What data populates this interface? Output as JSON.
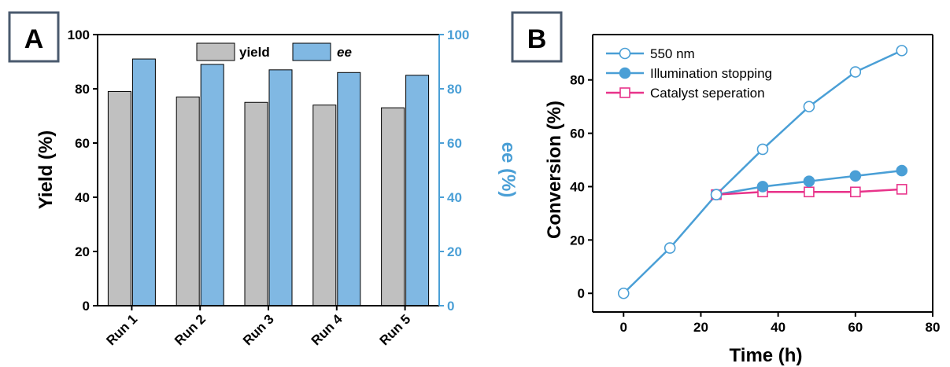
{
  "chart_data": [
    {
      "panel_label": "A",
      "type": "bar",
      "categories": [
        "Run 1",
        "Run 2",
        "Run 3",
        "Run 4",
        "Run 5"
      ],
      "series": [
        {
          "name": "yield",
          "axis": "left",
          "color": "#c0c0c0",
          "values": [
            79,
            77,
            75,
            74,
            73
          ]
        },
        {
          "name": "ee",
          "axis": "right",
          "color": "#80b8e3",
          "values": [
            91,
            89,
            87,
            86,
            85
          ]
        }
      ],
      "ylabel": "Yield (%)",
      "ylabel_right": "ee (%)",
      "ylim": [
        0,
        100
      ],
      "yticks": [
        0,
        20,
        40,
        60,
        80,
        100
      ],
      "right_axis_color": "#4a9fd6",
      "legend": "top-center",
      "grid": false
    },
    {
      "panel_label": "B",
      "type": "line",
      "xlabel": "Time (h)",
      "ylabel": "Conversion (%)",
      "xlim": [
        -8,
        80
      ],
      "ylim": [
        -7,
        97
      ],
      "xticks": [
        0,
        20,
        40,
        60,
        80
      ],
      "yticks": [
        0,
        20,
        40,
        60,
        80
      ],
      "legend": "top-left",
      "grid": false,
      "series": [
        {
          "name": "550 nm",
          "color": "#4a9fd6",
          "marker": "open-circle",
          "x": [
            0,
            12,
            24,
            36,
            48,
            60,
            72
          ],
          "y": [
            0,
            17,
            37,
            54,
            70,
            83,
            91
          ]
        },
        {
          "name": "Illumination stopping",
          "color": "#4a9fd6",
          "marker": "filled-circle",
          "x": [
            24,
            36,
            48,
            60,
            72
          ],
          "y": [
            37,
            40,
            42,
            44,
            46
          ]
        },
        {
          "name": "Catalyst seperation",
          "color": "#e8338a",
          "marker": "open-square",
          "x": [
            24,
            36,
            48,
            60,
            72
          ],
          "y": [
            37,
            38,
            38,
            38,
            39
          ]
        }
      ]
    }
  ]
}
